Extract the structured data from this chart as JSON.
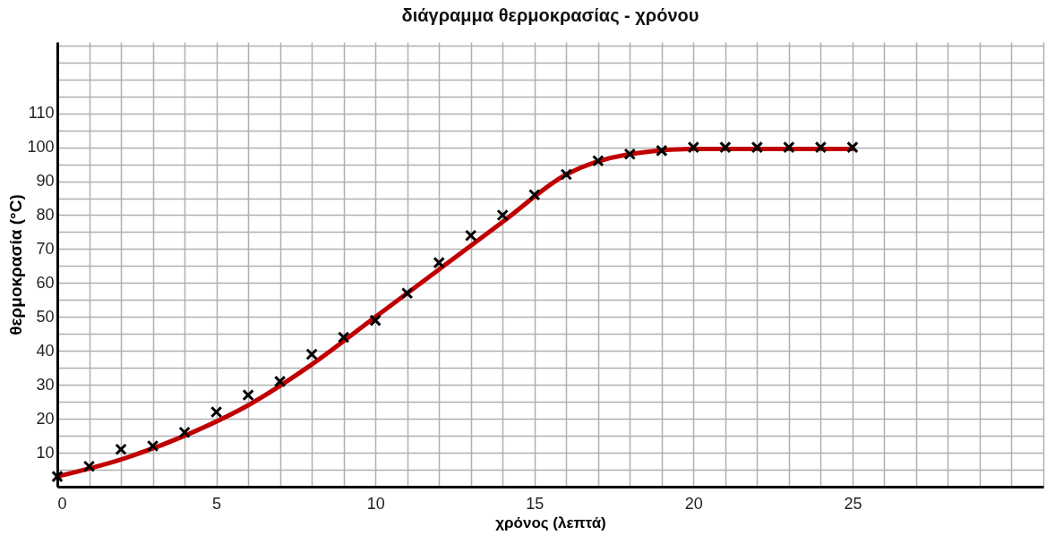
{
  "chart_data": {
    "type": "scatter",
    "title": "διάγραμμα θερμοκρασίας - χρόνου",
    "xlabel": "χρόνος (λεπτά)",
    "ylabel": "θερμοκρασία (°C)",
    "x": [
      0,
      1,
      2,
      3,
      4,
      5,
      6,
      7,
      8,
      9,
      10,
      11,
      12,
      13,
      14,
      15,
      16,
      17,
      18,
      19,
      20,
      21,
      22,
      23,
      24,
      25
    ],
    "series": [
      {
        "color": "#000000",
        "marker": "cross",
        "values": [
          3,
          6,
          11,
          12,
          16,
          22,
          27,
          31,
          39,
          44,
          49,
          57,
          66,
          74,
          80,
          86,
          92,
          96,
          98,
          99,
          100,
          100,
          100,
          100,
          100,
          100
        ]
      },
      {
        "type": "line",
        "color": "#c00000",
        "x": [
          0,
          2,
          4,
          6,
          8,
          10,
          12,
          14,
          16,
          18,
          20,
          25
        ],
        "values": [
          3,
          8,
          15,
          24,
          36,
          50,
          64,
          78,
          92,
          98,
          99.5,
          99.5
        ]
      }
    ],
    "line_style": "solid",
    "grid": true,
    "xlim": [
      0,
      31
    ],
    "ylim": [
      0,
      131
    ],
    "xticks": [
      0,
      {
        "value": 1,
        "label": null
      },
      {
        "value": 2,
        "label": null
      },
      {
        "value": 3,
        "label": null
      },
      {
        "value": 4,
        "label": null
      },
      5,
      {
        "value": 6,
        "label": null
      },
      {
        "value": 7,
        "label": null
      },
      {
        "value": 8,
        "label": null
      },
      {
        "value": 9,
        "label": null
      },
      10,
      {
        "value": 11,
        "label": null
      },
      {
        "value": 12,
        "label": null
      },
      {
        "value": 13,
        "label": null
      },
      {
        "value": 14,
        "label": null
      },
      15,
      {
        "value": 16,
        "label": null
      },
      {
        "value": 17,
        "label": null
      },
      {
        "value": 18,
        "label": null
      },
      {
        "value": 19,
        "label": null
      },
      20,
      {
        "value": 21,
        "label": null
      },
      {
        "value": 22,
        "label": null
      },
      {
        "value": 23,
        "label": null
      },
      {
        "value": 24,
        "label": null
      },
      25,
      {
        "value": 26,
        "label": null
      },
      {
        "value": 27,
        "label": null
      },
      {
        "value": 28,
        "label": null
      },
      {
        "value": 29,
        "label": null
      },
      {
        "value": 30,
        "label": null
      },
      {
        "value": 31,
        "label": null
      }
    ],
    "yticks": [
      {
        "value": 0,
        "label": null
      },
      {
        "value": 5,
        "label": null
      },
      10,
      {
        "value": 15,
        "label": null
      },
      20,
      {
        "value": 25,
        "label": null
      },
      30,
      {
        "value": 35,
        "label": null
      },
      40,
      {
        "value": 45,
        "label": null
      },
      50,
      {
        "value": 55,
        "label": null
      },
      60,
      {
        "value": 65,
        "label": null
      },
      70,
      {
        "value": 75,
        "label": null
      },
      80,
      {
        "value": 85,
        "label": null
      },
      90,
      {
        "value": 95,
        "label": null
      },
      100,
      {
        "value": 105,
        "label": null
      },
      110,
      {
        "value": 115,
        "label": null
      },
      {
        "value": 120,
        "label": null
      },
      {
        "value": 125,
        "label": null
      },
      {
        "value": 130,
        "label": null
      }
    ]
  }
}
